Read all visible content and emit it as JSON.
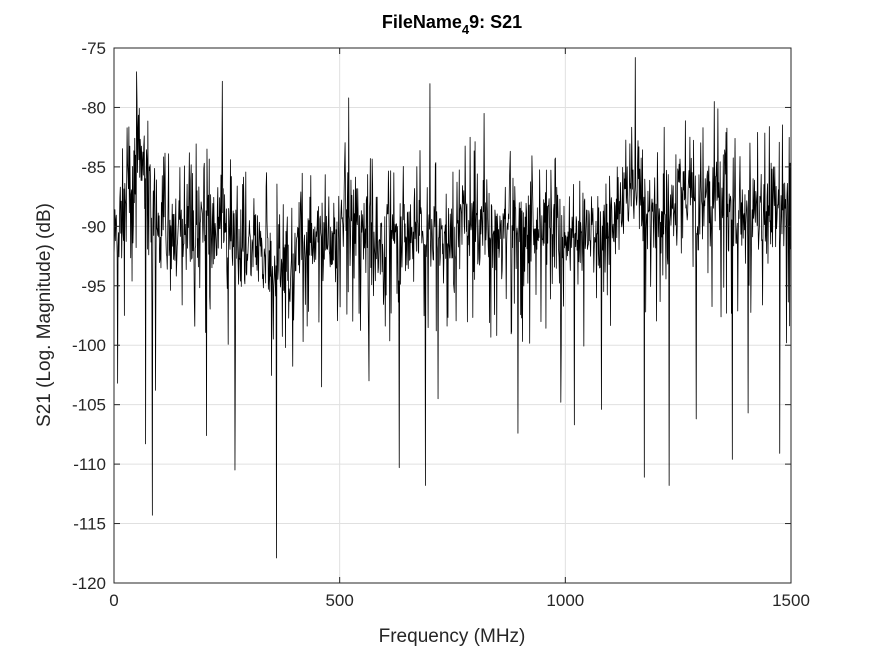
{
  "chart_data": {
    "type": "line",
    "title": {
      "prefix": "FileName",
      "subscript": "4",
      "suffix": "9: S21"
    },
    "xlabel": "Frequency (MHz)",
    "ylabel": "S21 (Log. Magnitude) (dB)",
    "xlim": [
      0,
      1500
    ],
    "ylim": [
      -120,
      -75
    ],
    "xticks": [
      0,
      500,
      1000,
      1500
    ],
    "xtick_labels": [
      "0",
      "500",
      "1000",
      "1500"
    ],
    "yticks": [
      -120,
      -115,
      -110,
      -105,
      -100,
      -95,
      -90,
      -85,
      -80,
      -75
    ],
    "ytick_labels": [
      "-120",
      "-115",
      "-110",
      "-105",
      "-100",
      "-95",
      "-90",
      "-85",
      "-80",
      "-75"
    ],
    "grid": true,
    "legend": "none",
    "line_color": "#000000",
    "grid_color": "#e0e0e0",
    "envelope": {
      "x": [
        0,
        30,
        55,
        70,
        100,
        140,
        170,
        210,
        250,
        280,
        300,
        320,
        360,
        380,
        420,
        440,
        470,
        500,
        520,
        550,
        580,
        610,
        640,
        670,
        700,
        740,
        780,
        820,
        860,
        900,
        950,
        980,
        1010,
        1050,
        1080,
        1100,
        1120,
        1150,
        1180,
        1210,
        1250,
        1290,
        1320,
        1350,
        1380,
        1410,
        1440,
        1470,
        1500
      ],
      "upper": [
        -87,
        -82,
        -79,
        -81,
        -86,
        -86,
        -85,
        -86,
        -86,
        -87,
        -86,
        -87,
        -88,
        -88,
        -86,
        -87,
        -88,
        -86,
        -84,
        -85,
        -87,
        -86,
        -87,
        -86,
        -86,
        -87,
        -85,
        -85,
        -86,
        -86,
        -85,
        -86,
        -87,
        -86,
        -86,
        -85,
        -84,
        -82,
        -83,
        -84,
        -83,
        -84,
        -82,
        -83,
        -85,
        -85,
        -84,
        -83,
        -84
      ],
      "lower": [
        -96,
        -92,
        -89,
        -91,
        -95,
        -95,
        -94,
        -95,
        -95,
        -96,
        -96,
        -97,
        -99,
        -98,
        -96,
        -95,
        -96,
        -94,
        -93,
        -94,
        -96,
        -95,
        -95,
        -95,
        -95,
        -96,
        -94,
        -94,
        -95,
        -95,
        -95,
        -95,
        -96,
        -95,
        -95,
        -94,
        -93,
        -92,
        -93,
        -93,
        -92,
        -93,
        -92,
        -93,
        -94,
        -94,
        -94,
        -93,
        -94
      ]
    },
    "spikes": [
      {
        "x": 8,
        "y": -103.2
      },
      {
        "x": 50,
        "y": -77
      },
      {
        "x": 70,
        "y": -108.3
      },
      {
        "x": 85,
        "y": -114.3
      },
      {
        "x": 92,
        "y": -103.8
      },
      {
        "x": 205,
        "y": -107.6
      },
      {
        "x": 240,
        "y": -77.8
      },
      {
        "x": 268,
        "y": -110.5
      },
      {
        "x": 360,
        "y": -117.9
      },
      {
        "x": 380,
        "y": -100.2
      },
      {
        "x": 460,
        "y": -103.5
      },
      {
        "x": 520,
        "y": -79.2
      },
      {
        "x": 565,
        "y": -103
      },
      {
        "x": 632,
        "y": -110.3
      },
      {
        "x": 690,
        "y": -111.8
      },
      {
        "x": 700,
        "y": -78
      },
      {
        "x": 718,
        "y": -104.5
      },
      {
        "x": 820,
        "y": -80.5
      },
      {
        "x": 895,
        "y": -107.4
      },
      {
        "x": 990,
        "y": -104.8
      },
      {
        "x": 1020,
        "y": -106.7
      },
      {
        "x": 1080,
        "y": -105.4
      },
      {
        "x": 1155,
        "y": -75.8
      },
      {
        "x": 1175,
        "y": -111.1
      },
      {
        "x": 1230,
        "y": -111.8
      },
      {
        "x": 1290,
        "y": -106.2
      },
      {
        "x": 1330,
        "y": -79.5
      },
      {
        "x": 1370,
        "y": -109.6
      },
      {
        "x": 1405,
        "y": -105.7
      },
      {
        "x": 1475,
        "y": -109.1
      },
      {
        "x": 1490,
        "y": -99.8
      }
    ]
  }
}
